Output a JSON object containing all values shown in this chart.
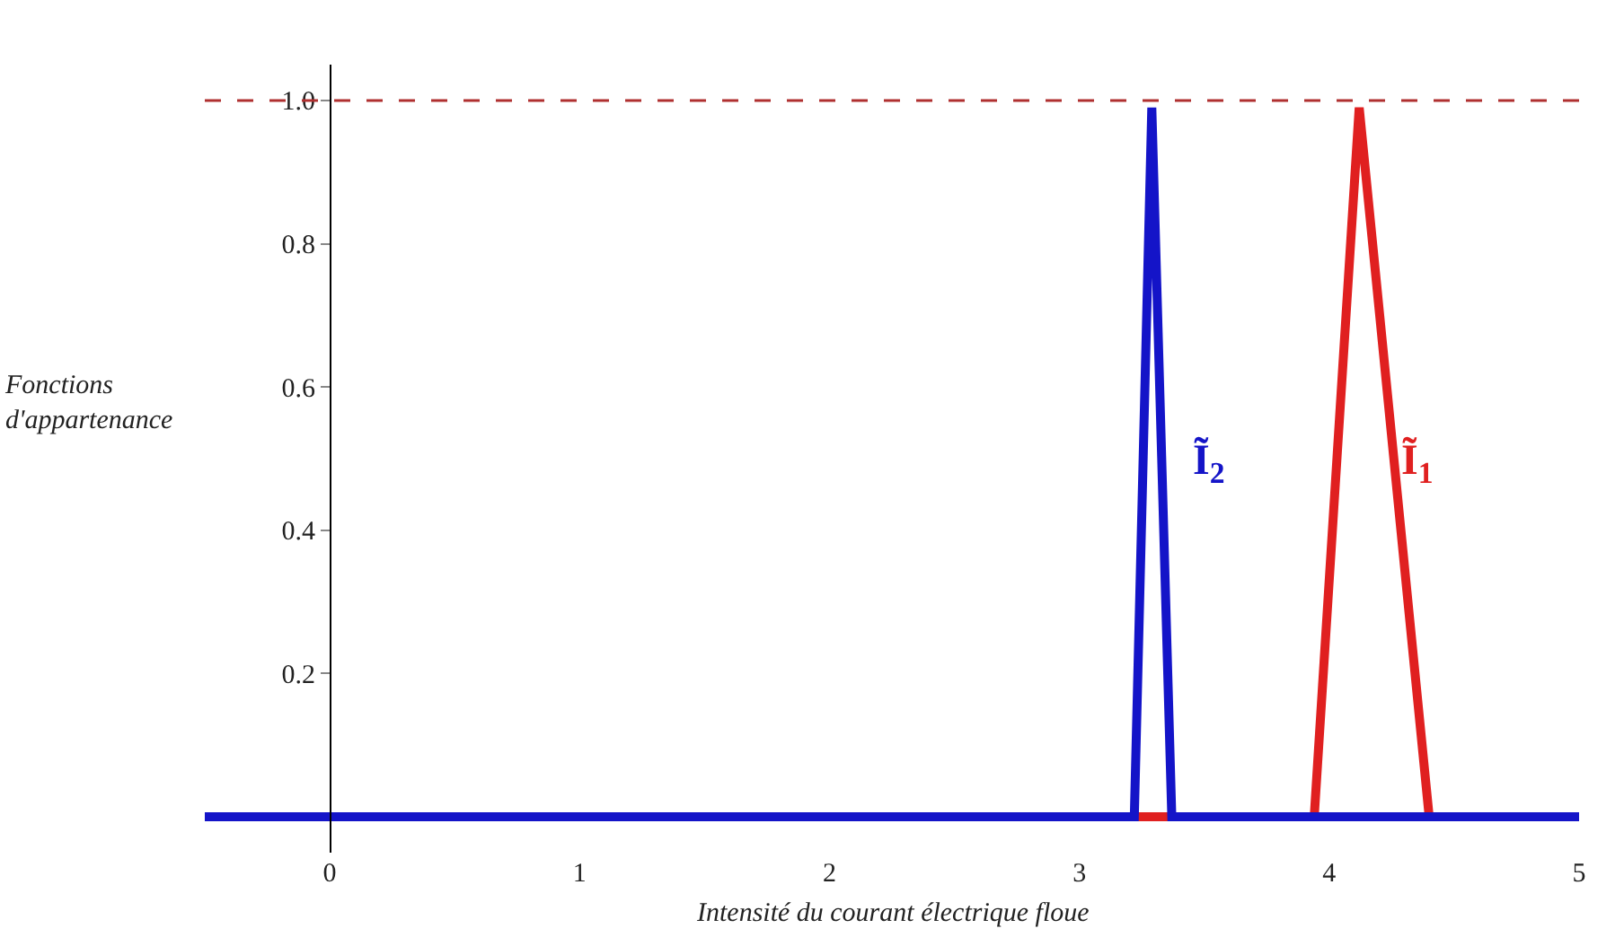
{
  "chart_data": {
    "type": "line",
    "xlabel": "Intensité du courant électrique floue",
    "ylabel": "Fonctions d'appartenance",
    "xlim": [
      -0.5,
      5
    ],
    "ylim": [
      -0.05,
      1.05
    ],
    "xticks": [
      0,
      1,
      2,
      3,
      4,
      5
    ],
    "yticks": [
      0.2,
      0.4,
      0.6,
      0.8,
      {
        "value": 1.0,
        "label": "1.0"
      }
    ],
    "marker": "none",
    "line_style": "solid",
    "series": [
      {
        "name": "Ĩ$_{1}$",
        "color": "#e02020",
        "x": [
          -0.5,
          3.94,
          4.12,
          4.4,
          5
        ],
        "values": [
          0,
          0,
          0.99,
          0,
          0
        ]
      },
      {
        "name": "Ĩ$_{2}$",
        "color": "#1414c8",
        "x": [
          -0.5,
          3.22,
          3.29,
          3.37,
          5
        ],
        "values": [
          0,
          0,
          0.99,
          0,
          0
        ]
      }
    ],
    "ref_lines": [
      {
        "axis": "y",
        "value": 1.0,
        "label": null,
        "color": "#b03030",
        "line_style": "dashed"
      }
    ]
  }
}
